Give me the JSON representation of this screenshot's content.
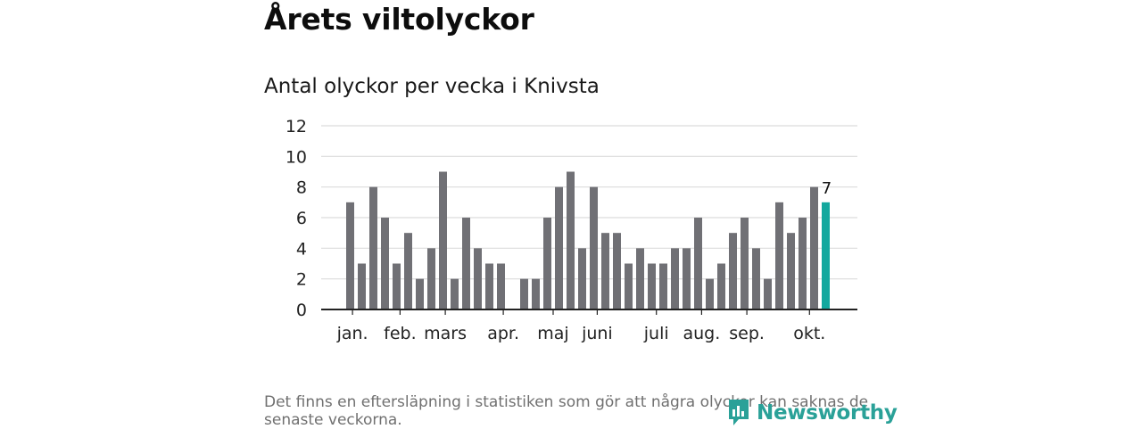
{
  "header": {
    "title": "Årets viltolyckor",
    "subtitle": "Antal olyckor per vecka i Knivsta"
  },
  "chart_data": {
    "type": "bar",
    "title": "Antal olyckor per vecka i Knivsta",
    "xlabel": "",
    "ylabel": "",
    "ylim": [
      0,
      12
    ],
    "yticks": [
      "0",
      "2",
      "4",
      "6",
      "8",
      "10",
      "12"
    ],
    "grid": true,
    "values": [
      7,
      3,
      8,
      6,
      3,
      5,
      2,
      4,
      9,
      2,
      6,
      4,
      3,
      3,
      0,
      2,
      2,
      6,
      8,
      9,
      4,
      8,
      5,
      5,
      3,
      4,
      3,
      3,
      4,
      4,
      6,
      2,
      3,
      5,
      6,
      4,
      2,
      7,
      5,
      6,
      8,
      7
    ],
    "month_ticks": [
      {
        "label": "jan.",
        "week": 0.2
      },
      {
        "label": "feb.",
        "week": 4.3
      },
      {
        "label": "mars",
        "week": 8.2
      },
      {
        "label": "apr.",
        "week": 13.2
      },
      {
        "label": "maj",
        "week": 17.5
      },
      {
        "label": "juni",
        "week": 21.3
      },
      {
        "label": "juli",
        "week": 26.4
      },
      {
        "label": "aug.",
        "week": 30.3
      },
      {
        "label": "sep.",
        "week": 34.2
      },
      {
        "label": "okt.",
        "week": 39.6
      }
    ],
    "highlight_index": 41,
    "highlight_label": "7",
    "colors": {
      "bar": "#707075",
      "highlight": "#13a89e",
      "grid": "#dcdcdc",
      "axis": "#222222"
    }
  },
  "footer": {
    "note": "Det finns en eftersläpning i statistiken som gör att några olyckor kan saknas de senaste veckorna.",
    "brand": "Newsworthy",
    "brand_icon": "newsworthy-logo-icon"
  }
}
